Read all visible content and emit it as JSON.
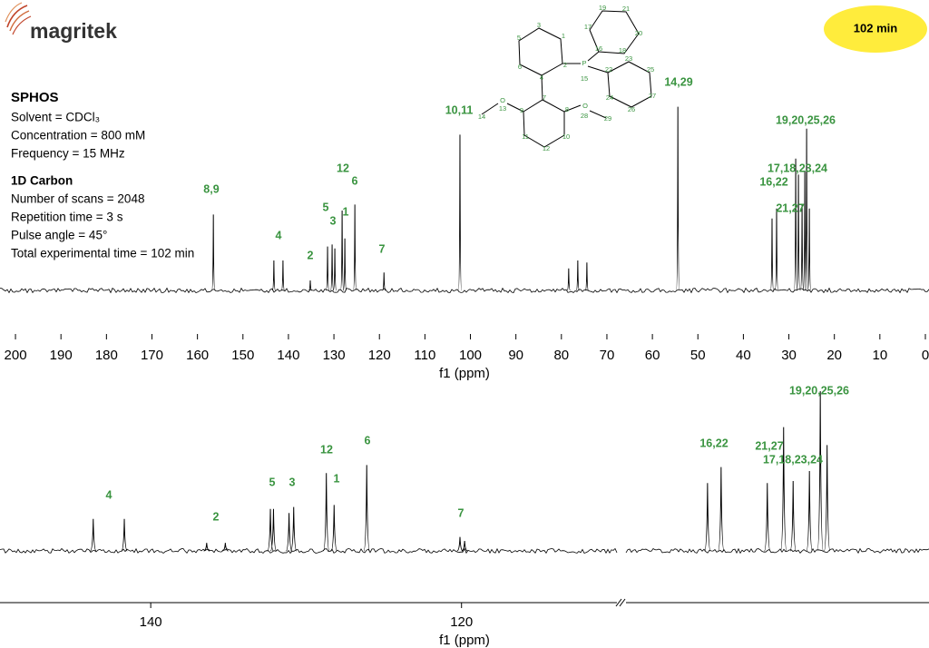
{
  "header": {
    "logo": "magritek",
    "badge": "102 min"
  },
  "info": {
    "title": "SPHOS",
    "lines": [
      "Solvent = CDCl₃",
      "Concentration = 800 mM",
      "Frequency = 15 MHz"
    ],
    "section": "1D Carbon",
    "section_lines": [
      "Number of scans = 2048",
      "Repetition time = 3 s",
      "Pulse angle = 45°",
      "Total experimental time = 102 min"
    ]
  },
  "structure": {
    "atoms": [
      "1",
      "2",
      "3",
      "4",
      "5",
      "6",
      "7",
      "8",
      "9",
      "10",
      "11",
      "12",
      "13",
      "14",
      "15",
      "16",
      "17",
      "18",
      "19",
      "20",
      "21",
      "22",
      "23",
      "24",
      "25",
      "26",
      "27",
      "28",
      "29",
      "P",
      "O",
      "O"
    ]
  },
  "chart_data": [
    {
      "type": "spectrum",
      "x_label": "f1 (ppm)",
      "xlim": [
        203.4,
        -0.8
      ],
      "xticks": [
        200,
        190,
        180,
        170,
        160,
        150,
        140,
        130,
        120,
        110,
        100,
        90,
        80,
        70,
        60,
        50,
        40,
        30,
        20,
        10,
        0
      ],
      "ylim": [
        0,
        100
      ],
      "color": "#000000",
      "x": [
        156.5,
        143.2,
        141.2,
        135.2,
        131.4,
        130.4,
        129.8,
        128.2,
        127.6,
        125.4,
        119.0,
        102.3,
        78.4,
        76.4,
        74.4,
        54.4,
        33.7,
        32.7,
        28.5,
        27.9,
        27.1,
        26.5,
        26.1,
        25.5
      ],
      "values": [
        38,
        15,
        15,
        5,
        22,
        23,
        21,
        40,
        26,
        43,
        9,
        78,
        11,
        15,
        14,
        92,
        36,
        41,
        66,
        58,
        43,
        60,
        81,
        41
      ],
      "annotations": [
        "8,9",
        "4",
        "2",
        "5",
        "3",
        "12",
        "1",
        "6",
        "7",
        "10,11",
        "14,29",
        "19,20,25,26",
        "17,18,23,24",
        "16,22",
        "21,27"
      ]
    },
    {
      "type": "spectrum",
      "x_label": "f1 (ppm)",
      "xlim": [
        149.7,
        110
      ],
      "xticks": [
        140,
        120
      ],
      "x2lim": [
        39.7,
        17.4
      ],
      "ylim": [
        0,
        100
      ],
      "color": "#000000",
      "series": [
        {
          "x": [
            143.7,
            141.7,
            136.4,
            135.2,
            132.3,
            132.1,
            131.1,
            130.8,
            128.7,
            128.2,
            126.1,
            120.1,
            119.8
          ],
          "values": [
            16,
            16,
            4,
            4,
            21,
            21,
            19,
            22,
            39,
            23,
            43,
            7,
            5
          ]
        },
        {
          "axis": "x2",
          "x": [
            33.7,
            32.7,
            29.3,
            28.1,
            27.4,
            26.2,
            25.4,
            24.9
          ],
          "values": [
            34,
            42,
            34,
            62,
            35,
            40,
            80,
            53
          ]
        }
      ],
      "annotations": [
        "4",
        "2",
        "5",
        "3",
        "12",
        "1",
        "6",
        "7",
        "16,22",
        "21,27",
        "17,18,23,24",
        "19,20,25,26"
      ]
    }
  ]
}
